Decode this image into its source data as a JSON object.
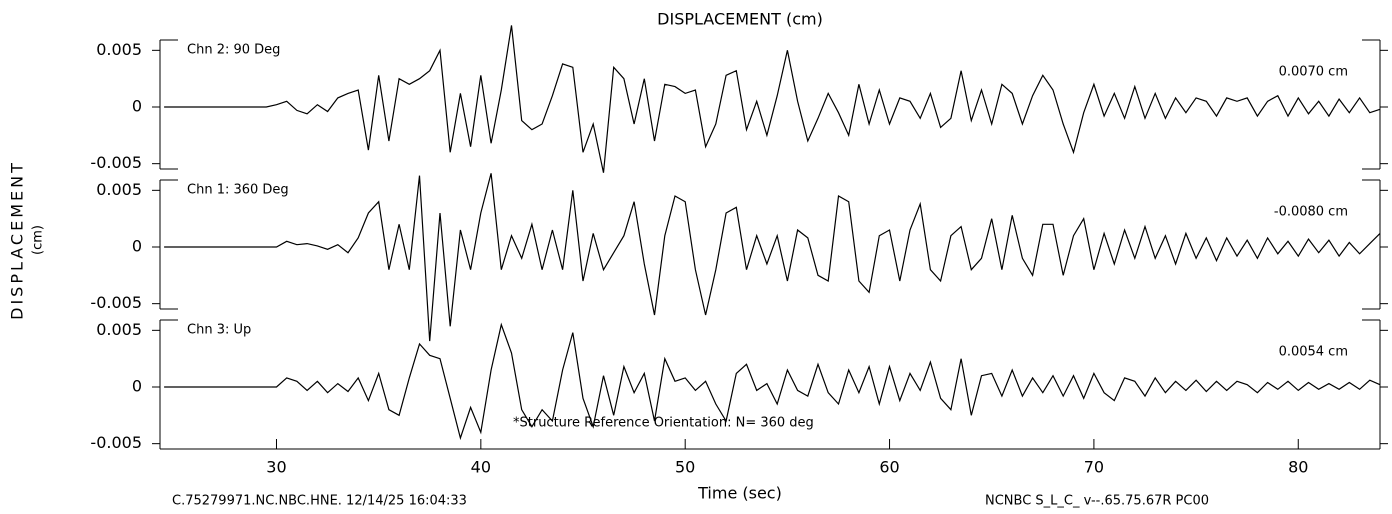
{
  "title": "DISPLACEMENT (cm)",
  "y_label": "DISPLACEMENT",
  "y_unit": "(cm)",
  "x_label": "Time (sec)",
  "footer_left": "C.75279971.NC.NBC.HNE. 12/14/25 16:04:33",
  "footer_right": "NCNBC  S_L_C_  v--.65.75.67R PC00",
  "note": "*Structure Reference Orientation: N= 360 deg",
  "chart_data": {
    "type": "line",
    "xlim": [
      24.3,
      84
    ],
    "xticks": [
      30,
      40,
      50,
      60,
      70,
      80
    ],
    "ylim": [
      -0.006,
      0.006
    ],
    "yticks": [
      0.005,
      0,
      -0.005
    ],
    "x": [
      24.5,
      25,
      25.5,
      26,
      26.5,
      27,
      27.5,
      28,
      28.5,
      29,
      29.5,
      30,
      30.5,
      31,
      31.5,
      32,
      32.5,
      33,
      33.5,
      34,
      34.5,
      35,
      35.5,
      36,
      36.5,
      37,
      37.5,
      38,
      38.5,
      39,
      39.5,
      40,
      40.5,
      41,
      41.5,
      42,
      42.5,
      43,
      43.5,
      44,
      44.5,
      45,
      45.5,
      46,
      46.5,
      47,
      47.5,
      48,
      48.5,
      49,
      49.5,
      50,
      50.5,
      51,
      51.5,
      52,
      52.5,
      53,
      53.5,
      54,
      54.5,
      55,
      55.5,
      56,
      56.5,
      57,
      57.5,
      58,
      58.5,
      59,
      59.5,
      60,
      60.5,
      61,
      61.5,
      62,
      62.5,
      63,
      63.5,
      64,
      64.5,
      65,
      65.5,
      66,
      66.5,
      67,
      67.5,
      68,
      68.5,
      69,
      69.5,
      70,
      70.5,
      71,
      71.5,
      72,
      72.5,
      73,
      73.5,
      74,
      74.5,
      75,
      75.5,
      76,
      76.5,
      77,
      77.5,
      78,
      78.5,
      79,
      79.5,
      80,
      80.5,
      81,
      81.5,
      82,
      82.5,
      83,
      83.5,
      84
    ],
    "series": [
      {
        "name": "Chn 2: 90 Deg",
        "color": "#000000",
        "peak_label": "0.0070  cm",
        "values": [
          0,
          0,
          0,
          0,
          0,
          0,
          0,
          0,
          0,
          0,
          0,
          0.0002,
          0.0005,
          -0.0003,
          -0.0006,
          0.0002,
          -0.0004,
          0.0008,
          0.0012,
          0.0015,
          -0.0038,
          0.0028,
          -0.003,
          0.0025,
          0.002,
          0.0025,
          0.0032,
          0.005,
          -0.004,
          0.0012,
          -0.0035,
          0.0028,
          -0.0032,
          0.0015,
          0.0072,
          -0.0012,
          -0.002,
          -0.0015,
          0.001,
          0.0038,
          0.0035,
          -0.004,
          -0.0015,
          -0.0058,
          0.0035,
          0.0025,
          -0.0015,
          0.0025,
          -0.003,
          0.002,
          0.0018,
          0.0012,
          0.0015,
          -0.0035,
          -0.0015,
          0.0028,
          0.0032,
          -0.002,
          0.0005,
          -0.0025,
          0.001,
          0.005,
          0.0005,
          -0.003,
          -0.001,
          0.0012,
          -0.0005,
          -0.0025,
          0.002,
          -0.0015,
          0.0015,
          -0.0015,
          0.0008,
          0.0005,
          -0.001,
          0.0012,
          -0.0018,
          -0.001,
          0.0032,
          -0.0012,
          0.0015,
          -0.0015,
          0.002,
          0.0012,
          -0.0015,
          0.001,
          0.0028,
          0.0015,
          -0.0015,
          -0.004,
          -0.0005,
          0.002,
          -0.0008,
          0.0012,
          -0.001,
          0.0018,
          -0.001,
          0.0012,
          -0.001,
          0.0008,
          -0.0005,
          0.0008,
          0.0005,
          -0.0008,
          0.0008,
          0.0005,
          0.0008,
          -0.0008,
          0.0005,
          0.001,
          -0.0008,
          0.0008,
          -0.0006,
          0.0005,
          -0.0008,
          0.0007,
          -0.0005,
          0.0008,
          -0.0005,
          -0.0002
        ]
      },
      {
        "name": "Chn 1: 360 Deg",
        "color": "#000000",
        "peak_label": "-0.0080  cm",
        "values": [
          0,
          0,
          0,
          0,
          0,
          0,
          0,
          0,
          0,
          0,
          0,
          0,
          0.0005,
          0.0002,
          0.0003,
          0.0001,
          -0.0002,
          0.0002,
          -0.0005,
          0.0008,
          0.003,
          0.004,
          -0.002,
          0.002,
          -0.002,
          0.0063,
          -0.0083,
          0.003,
          -0.007,
          0.0015,
          -0.002,
          0.003,
          0.0065,
          -0.002,
          0.001,
          -0.001,
          0.002,
          -0.002,
          0.0015,
          -0.002,
          0.005,
          -0.003,
          0.0012,
          -0.002,
          -0.0005,
          0.001,
          0.004,
          -0.0015,
          -0.006,
          0.001,
          0.0045,
          0.004,
          -0.002,
          -0.006,
          -0.002,
          0.003,
          0.0035,
          -0.002,
          0.001,
          -0.0015,
          0.001,
          -0.003,
          0.0015,
          0.0008,
          -0.0025,
          -0.003,
          0.0045,
          0.004,
          -0.003,
          -0.004,
          0.001,
          0.0015,
          -0.003,
          0.0015,
          0.0038,
          -0.002,
          -0.003,
          0.001,
          0.0018,
          -0.002,
          -0.001,
          0.0025,
          -0.002,
          0.0028,
          -0.001,
          -0.0025,
          0.002,
          0.002,
          -0.0025,
          0.001,
          0.0025,
          -0.002,
          0.0012,
          -0.0015,
          0.0015,
          -0.001,
          0.0018,
          -0.001,
          0.001,
          -0.0015,
          0.0012,
          -0.001,
          0.0008,
          -0.0012,
          0.0008,
          -0.0008,
          0.0006,
          -0.001,
          0.0008,
          -0.0006,
          0.0005,
          -0.0008,
          0.0007,
          -0.0005,
          0.0006,
          -0.0008,
          0.0004,
          -0.0006,
          0.0003,
          0.0012
        ]
      },
      {
        "name": "Chn 3: Up",
        "color": "#000000",
        "peak_label": "0.0054  cm",
        "values": [
          0,
          0,
          0,
          0,
          0,
          0,
          0,
          0,
          0,
          0,
          0,
          0,
          0.0008,
          0.0005,
          -0.0003,
          0.0005,
          -0.0005,
          0.0003,
          -0.0004,
          0.0008,
          -0.0012,
          0.0012,
          -0.002,
          -0.0025,
          0.0008,
          0.0038,
          0.0028,
          0.0025,
          -0.001,
          -0.0045,
          -0.0018,
          -0.004,
          0.0015,
          0.0055,
          0.003,
          -0.002,
          -0.0035,
          -0.002,
          -0.003,
          0.0015,
          0.0048,
          -0.001,
          -0.0035,
          0.001,
          -0.0025,
          0.0018,
          -0.0005,
          0.0012,
          -0.003,
          0.0025,
          0.0005,
          0.0008,
          -0.0003,
          0.0005,
          -0.0015,
          -0.003,
          0.0012,
          0.002,
          -0.0003,
          0.0003,
          -0.0015,
          0.0015,
          -0.0003,
          -0.0008,
          0.002,
          -0.0005,
          -0.0015,
          0.0015,
          -0.0005,
          0.0018,
          -0.0015,
          0.0018,
          -0.0012,
          0.0012,
          -0.0003,
          0.0022,
          -0.001,
          -0.002,
          0.0025,
          -0.0025,
          0.001,
          0.0012,
          -0.0008,
          0.0015,
          -0.0008,
          0.0008,
          -0.0005,
          0.001,
          -0.0008,
          0.001,
          -0.001,
          0.0012,
          -0.0005,
          -0.0012,
          0.0008,
          0.0005,
          -0.0008,
          0.0008,
          -0.0005,
          0.0005,
          -0.0003,
          0.0006,
          -0.0004,
          0.0005,
          -0.0003,
          0.0005,
          0.0002,
          -0.0005,
          0.0004,
          -0.0002,
          0.0005,
          -0.0003,
          0.0004,
          -0.0002,
          0.0003,
          -0.0002,
          0.0004,
          -0.0002,
          0.0006,
          0.0002
        ]
      }
    ]
  }
}
